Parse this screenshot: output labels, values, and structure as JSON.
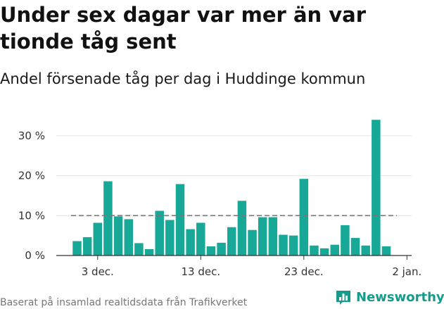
{
  "title": "Under sex dagar var mer än var tionde tåg sent",
  "subtitle": "Andel försenade tåg per dag i Huddinge kommun",
  "footer": "Baserat på insamlad realtidsdata från Trafikverket",
  "brand": "Newsworthy",
  "colors": {
    "bar": "#17a898",
    "reference_line": "#777777",
    "axis": "#333333",
    "brand": "#159b8c"
  },
  "chart_data": {
    "type": "bar",
    "title": "Under sex dagar var mer än var tionde tåg sent",
    "subtitle": "Andel försenade tåg per dag i Huddinge kommun",
    "x": [
      "1 dec.",
      "2 dec.",
      "3 dec.",
      "4 dec.",
      "5 dec.",
      "6 dec.",
      "7 dec.",
      "8 dec.",
      "9 dec.",
      "10 dec.",
      "11 dec.",
      "12 dec.",
      "13 dec.",
      "14 dec.",
      "15 dec.",
      "16 dec.",
      "17 dec.",
      "18 dec.",
      "19 dec.",
      "20 dec.",
      "21 dec.",
      "22 dec.",
      "23 dec.",
      "24 dec.",
      "25 dec.",
      "26 dec.",
      "27 dec.",
      "28 dec.",
      "29 dec.",
      "30 dec.",
      "31 dec."
    ],
    "values": [
      3.6,
      4.6,
      8.2,
      18.6,
      9.8,
      9.1,
      3.1,
      1.6,
      11.2,
      8.9,
      17.9,
      6.6,
      8.2,
      2.3,
      3.2,
      7.1,
      13.7,
      6.4,
      9.6,
      9.6,
      5.2,
      5.0,
      19.2,
      2.5,
      1.8,
      2.7,
      7.6,
      4.4,
      2.5,
      34.0,
      2.3
    ],
    "reference_line": 10,
    "y_ticks": [
      0,
      10,
      20,
      30
    ],
    "y_tick_labels": [
      "0 %",
      "10 %",
      "20 %",
      "30 %"
    ],
    "ylim": [
      0,
      35
    ],
    "x_tick_labels": [
      {
        "date": "3 dec.",
        "label": "3 dec."
      },
      {
        "date": "13 dec.",
        "label": "13 dec."
      },
      {
        "date": "23 dec.",
        "label": "23 dec."
      },
      {
        "date": "2 jan.",
        "label": "2 jan."
      }
    ],
    "xlabel": "",
    "ylabel": "",
    "grid": "horizontal"
  }
}
